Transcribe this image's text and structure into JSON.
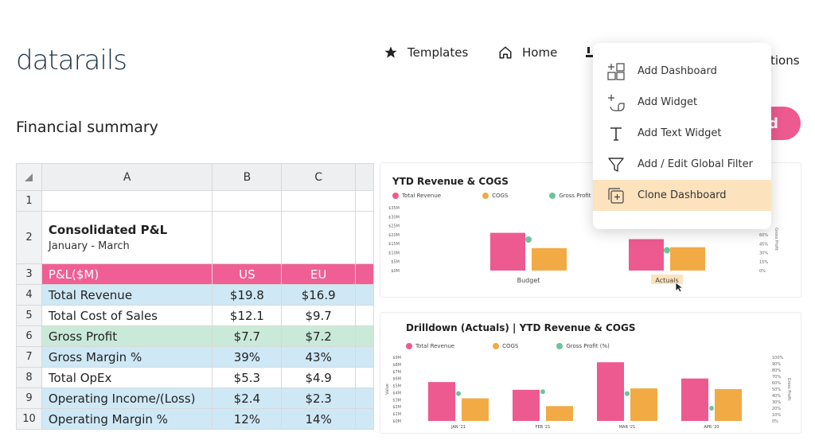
{
  "app": {
    "logo_text": "datarails",
    "page_title": "Financial summary",
    "accent_pink": "#ed5a8f",
    "accent_orange": "#f2aa45",
    "accent_green": "#6cc49a"
  },
  "nav": {
    "templates_label": "Templates",
    "home_label": "Home",
    "trailing_label": "tions"
  },
  "pill_label": "d",
  "menu": {
    "items": [
      {
        "label": "Add Dashboard",
        "icon": "add-dashboard-icon"
      },
      {
        "label": "Add Widget",
        "icon": "add-widget-icon"
      },
      {
        "label": "Add Text Widget",
        "icon": "text-icon"
      },
      {
        "label": "Add / Edit Global Filter",
        "icon": "filter-icon"
      },
      {
        "label": "Clone Dashboard",
        "icon": "clone-icon"
      }
    ]
  },
  "sheet": {
    "corner": "",
    "columns": [
      "A",
      "B",
      "C",
      ""
    ],
    "rows": [
      {
        "num": "1",
        "a": "",
        "b": "",
        "c": "",
        "style": "white"
      },
      {
        "num": "2",
        "a": "Consolidated P&L",
        "a2": "January - March",
        "b": "",
        "c": "",
        "style": "title"
      },
      {
        "num": "3",
        "a": "P&L($M)",
        "b": "US",
        "c": "EU",
        "style": "pink"
      },
      {
        "num": "4",
        "a": "Total Revenue",
        "b": "$19.8",
        "c": "$16.9",
        "style": "blue"
      },
      {
        "num": "5",
        "a": "Total Cost of Sales",
        "b": "$12.1",
        "c": "$9.7",
        "style": "white"
      },
      {
        "num": "6",
        "a": "Gross Profit",
        "b": "$7.7",
        "c": "$7.2",
        "style": "green"
      },
      {
        "num": "7",
        "a": "Gross Margin %",
        "b": "39%",
        "c": "43%",
        "style": "blue"
      },
      {
        "num": "8",
        "a": "Total OpEx",
        "b": "$5.3",
        "c": "$4.9",
        "style": "white"
      },
      {
        "num": "9",
        "a": "Operating Income/(Loss)",
        "b": "$2.4",
        "c": "$2.3",
        "style": "blue"
      },
      {
        "num": "10",
        "a": "Operating Margin %",
        "b": "12%",
        "c": "14%",
        "style": "blue"
      }
    ]
  },
  "chart_data": [
    {
      "type": "bar",
      "title": "YTD Revenue & COGS",
      "categories": [
        "Budget",
        "Actuals"
      ],
      "series": [
        {
          "name": "Total Revenue",
          "values": [
            21,
            17.5
          ]
        },
        {
          "name": "COGS",
          "values": [
            12.5,
            13
          ]
        },
        {
          "name": "Gross Profit (%)",
          "values": [
            0.52,
            0.34
          ]
        }
      ],
      "y_ticks": [
        "$35M",
        "$30M",
        "$25M",
        "$20M",
        "$15M",
        "$10M",
        "$5M",
        "$0M"
      ],
      "y2_ticks": [
        "60%",
        "45%",
        "30%",
        "15%",
        "0%"
      ],
      "y2_label": "Gross Profit",
      "ylim": [
        0,
        35
      ],
      "highlight_category": "Actuals"
    },
    {
      "type": "bar",
      "title": "Drilldown (Actuals) | YTD Revenue & COGS",
      "categories": [
        "JAN '21",
        "FEB '21",
        "MAR '21",
        "APR '20"
      ],
      "series": [
        {
          "name": "Total Revenue",
          "values": [
            5.5,
            4.4,
            8.3,
            6
          ]
        },
        {
          "name": "COGS",
          "values": [
            3.2,
            2.1,
            4.6,
            4.5
          ]
        },
        {
          "name": "Gross Profit (%)",
          "values": [
            0.43,
            0.46,
            0.43,
            0.2
          ]
        }
      ],
      "y_ticks": [
        "$9M",
        "$8M",
        "$7M",
        "$6M",
        "$5M",
        "$4M",
        "$3M",
        "$2M",
        "$1M",
        "$0M"
      ],
      "y2_ticks": [
        "100%",
        "90%",
        "80%",
        "70%",
        "60%",
        "50%",
        "40%",
        "30%",
        "20%",
        "10%",
        "0%"
      ],
      "ylabel": "Value",
      "y2_label": "Gross Profit",
      "ylim": [
        0,
        9
      ]
    }
  ]
}
